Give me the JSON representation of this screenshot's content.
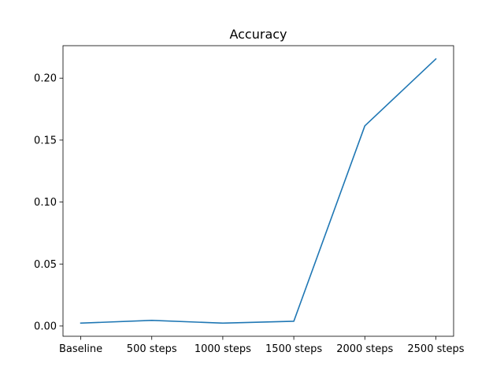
{
  "chart_data": {
    "type": "line",
    "title": "Accuracy",
    "xlabel": "",
    "ylabel": "",
    "categories": [
      "Baseline",
      "500 steps",
      "1000 steps",
      "1500 steps",
      "2000 steps",
      "2500 steps"
    ],
    "series": [
      {
        "values": [
          0.0023,
          0.0045,
          0.0023,
          0.0038,
          0.1615,
          0.2155
        ],
        "color": "#1f77b4"
      }
    ],
    "ylim": [
      -0.0083,
      0.2262
    ],
    "yticks": [
      0.0,
      0.05,
      0.1,
      0.15,
      0.2
    ],
    "ytick_labels": [
      "0.00",
      "0.05",
      "0.10",
      "0.15",
      "0.20"
    ],
    "grid": false,
    "legend": "none"
  }
}
